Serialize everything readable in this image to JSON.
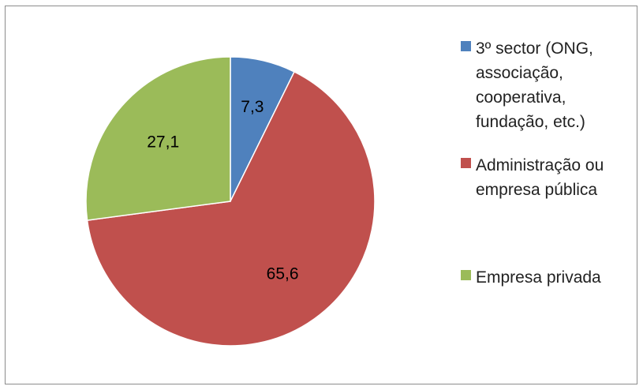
{
  "chart_data": {
    "type": "pie",
    "title": "",
    "slices": [
      {
        "label": "3º sector (ONG, associação, cooperativa, fundação, etc.)",
        "value": 7.3,
        "display": "7,3",
        "color": "#4f81bd"
      },
      {
        "label": "Administração ou empresa pública",
        "value": 65.6,
        "display": "65,6",
        "color": "#c0504d"
      },
      {
        "label": "Empresa privada",
        "value": 27.1,
        "display": "27,1",
        "color": "#9bbb59"
      }
    ],
    "legend_position": "right"
  }
}
